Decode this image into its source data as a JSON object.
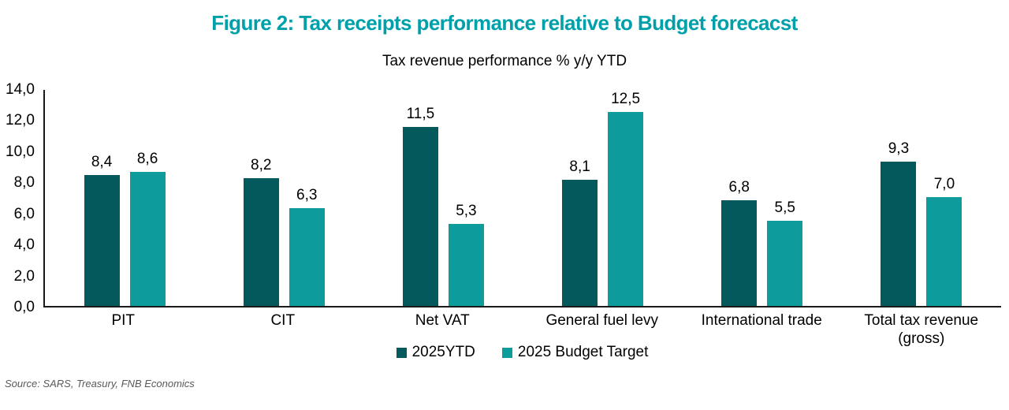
{
  "figure": {
    "title": "Figure 2: Tax receipts performance relative to Budget forecacst",
    "source": "Source: SARS, Treasury, FNB Economics"
  },
  "chart_data": {
    "type": "bar",
    "title": "Tax revenue performance % y/y YTD",
    "categories": [
      "PIT",
      "CIT",
      "Net VAT",
      "General fuel levy",
      "International trade",
      "Total tax revenue (gross)"
    ],
    "series": [
      {
        "name": "2025YTD",
        "color": "#04595C",
        "values": [
          8.4,
          8.2,
          11.5,
          8.1,
          6.8,
          9.3
        ]
      },
      {
        "name": "2025 Budget Target",
        "color": "#0D9B9B",
        "values": [
          8.6,
          6.3,
          5.3,
          12.5,
          5.5,
          7.0
        ]
      }
    ],
    "ylim": [
      0,
      14
    ],
    "ytick_step": 2,
    "ytick_labels": [
      "0,0",
      "2,0",
      "4,0",
      "6,0",
      "8,0",
      "10,0",
      "12,0",
      "14,0"
    ],
    "decimal_separator": ",",
    "value_labels": true,
    "grid": false,
    "legend_position": "bottom"
  },
  "colors": {
    "title_teal": "#00A0AA",
    "axis": "#1A1A1A",
    "label_text": "#000000",
    "source_text": "#595959"
  }
}
